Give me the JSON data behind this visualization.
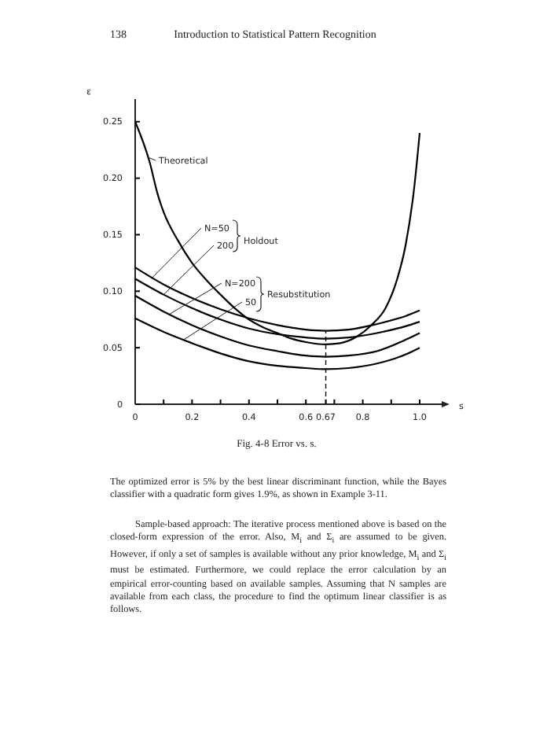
{
  "chart_data": {
    "type": "line",
    "title": "Fig. 4-8 Error vs. s.",
    "xlabel": "s",
    "ylabel": "ε",
    "xlim": [
      0,
      1.0
    ],
    "ylim": [
      0,
      0.27
    ],
    "xticks": [
      0,
      0.2,
      0.4,
      0.6,
      0.67,
      0.8,
      {
        "value": 1.0,
        "label": "1.0"
      },
      {
        "value": 0.1,
        "label": null
      },
      {
        "value": 0.3,
        "label": null
      },
      {
        "value": 0.5,
        "label": null
      },
      {
        "value": 0.7,
        "label": null
      },
      {
        "value": 0.9,
        "label": null
      }
    ],
    "yticks": [
      0,
      0.05,
      {
        "value": 0.1,
        "label": "0.10"
      },
      0.15,
      {
        "value": 0.2,
        "label": "0.20"
      },
      0.25
    ],
    "marker": "none",
    "line_style": "solid",
    "ref_lines": [
      {
        "axis": "x",
        "value": 0.67,
        "line_style": "dashed",
        "color": "#000000"
      }
    ],
    "series": [
      {
        "name": "Theoretical",
        "color": "#000000",
        "x": [
          0,
          0.05,
          0.08,
          0.1,
          0.15,
          0.2,
          0.25,
          0.3,
          0.35,
          0.4,
          0.45,
          0.5,
          0.55,
          0.6,
          0.67,
          0.72,
          0.78,
          0.83,
          0.88,
          0.92,
          0.95,
          0.98,
          1.0
        ],
        "values": [
          0.25,
          0.215,
          0.185,
          0.17,
          0.145,
          0.125,
          0.11,
          0.097,
          0.085,
          0.075,
          0.068,
          0.063,
          0.058,
          0.055,
          0.053,
          0.054,
          0.06,
          0.07,
          0.085,
          0.11,
          0.14,
          0.19,
          0.24
        ]
      },
      {
        "name": "N=50",
        "color": "#000000",
        "x": [
          0,
          0.1,
          0.2,
          0.3,
          0.4,
          0.5,
          0.6,
          0.67,
          0.75,
          0.85,
          0.95,
          1.0
        ],
        "values": [
          0.121,
          0.106,
          0.094,
          0.084,
          0.076,
          0.07,
          0.066,
          0.065,
          0.066,
          0.071,
          0.078,
          0.083
        ]
      },
      {
        "name": "200",
        "color": "#000000",
        "x": [
          0,
          0.1,
          0.2,
          0.3,
          0.4,
          0.5,
          0.6,
          0.67,
          0.75,
          0.85,
          0.95,
          1.0
        ],
        "values": [
          0.111,
          0.097,
          0.085,
          0.075,
          0.067,
          0.062,
          0.059,
          0.058,
          0.059,
          0.063,
          0.069,
          0.073
        ]
      },
      {
        "name": "N=200",
        "color": "#000000",
        "x": [
          0,
          0.1,
          0.2,
          0.3,
          0.4,
          0.5,
          0.6,
          0.67,
          0.75,
          0.85,
          0.95,
          1.0
        ],
        "values": [
          0.096,
          0.082,
          0.07,
          0.06,
          0.052,
          0.047,
          0.043,
          0.042,
          0.043,
          0.047,
          0.057,
          0.063
        ]
      },
      {
        "name": "50",
        "color": "#000000",
        "x": [
          0,
          0.1,
          0.2,
          0.3,
          0.4,
          0.5,
          0.6,
          0.67,
          0.75,
          0.85,
          0.95,
          1.0
        ],
        "values": [
          0.076,
          0.064,
          0.054,
          0.045,
          0.038,
          0.034,
          0.032,
          0.031,
          0.032,
          0.036,
          0.044,
          0.05
        ]
      }
    ],
    "annotations": [
      "138",
      "Introduction to Statistical Pattern Recognition",
      "Holdout",
      "Resubstitution",
      "The optimized error is 5% by the best linear discriminant function, while the Bayes classifier with a quadratic form gives 1.9%, as shown in Example 3-11.",
      "Sample-based approach: The iterative process mentioned above is based on the closed-form expression of the error. Also, M$_{i}$ and Σ$_{i}$ are assumed to be given. However, if only a set of samples is available without any prior knowledge, M$_{i}$ and Σ$_{i}$ must be estimated. Furthermore, we could replace the error calculation by an empirical error-counting based on available samples. Assuming that N samples are available from each class, the procedure to find the optimum linear classifier is as follows."
    ]
  }
}
